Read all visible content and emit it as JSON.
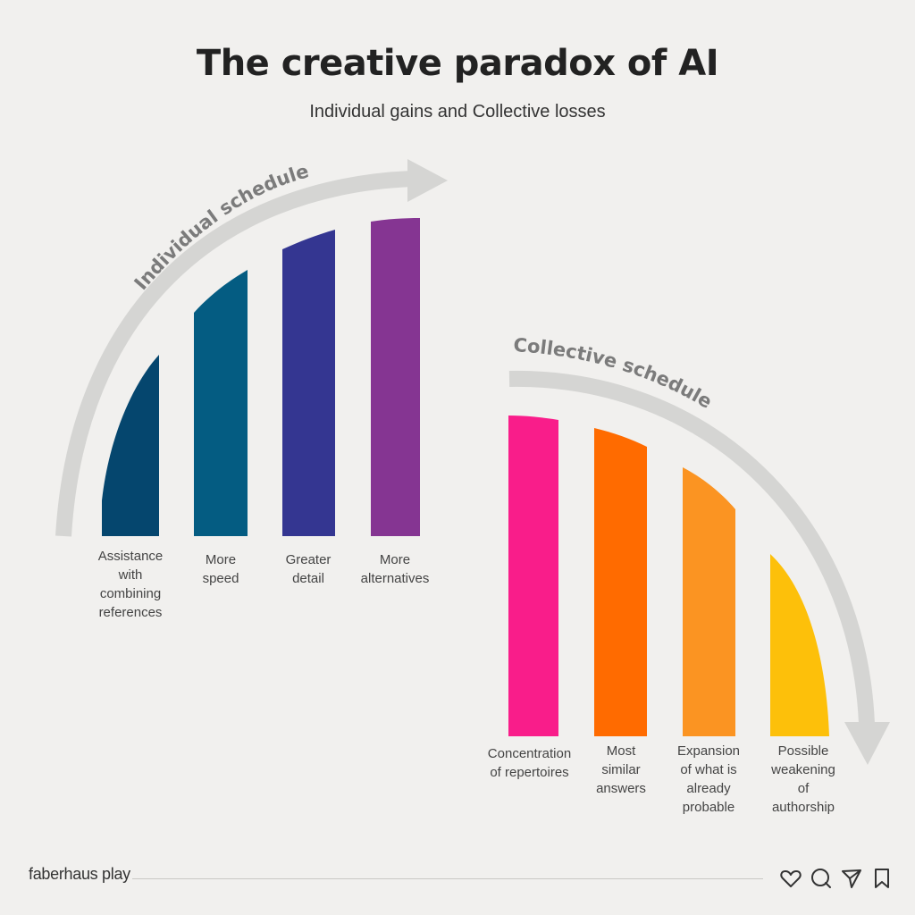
{
  "header": {
    "title": "The creative paradox of AI",
    "subtitle": "Individual gains and Collective losses"
  },
  "individual": {
    "arc_label": "Individual schedule",
    "bars": [
      {
        "label": "Assistance\nwith\ncombining\nreferences",
        "color": "#05466e"
      },
      {
        "label": "More\nspeed",
        "color": "#045c82"
      },
      {
        "label": "Greater\ndetail",
        "color": "#343691"
      },
      {
        "label": "More\nalternatives",
        "color": "#853592"
      }
    ]
  },
  "collective": {
    "arc_label": "Collective schedule",
    "bars": [
      {
        "label": "Concentration\nof repertoires",
        "color": "#f91d8a"
      },
      {
        "label": "Most\nsimilar\nanswers",
        "color": "#ff6b00"
      },
      {
        "label": "Expansion\nof what is\nalready\nprobable",
        "color": "#fb9422"
      },
      {
        "label": "Possible\nweakening\nof\nauthorship",
        "color": "#fdc00a"
      }
    ]
  },
  "footer": {
    "brand": "faberhaus play",
    "icons": [
      "heart-icon",
      "comment-icon",
      "send-icon",
      "bookmark-icon"
    ]
  },
  "colors": {
    "arrow": "#d5d5d3",
    "arc_text": "#7b7b7b",
    "background": "#f1f0ee"
  }
}
